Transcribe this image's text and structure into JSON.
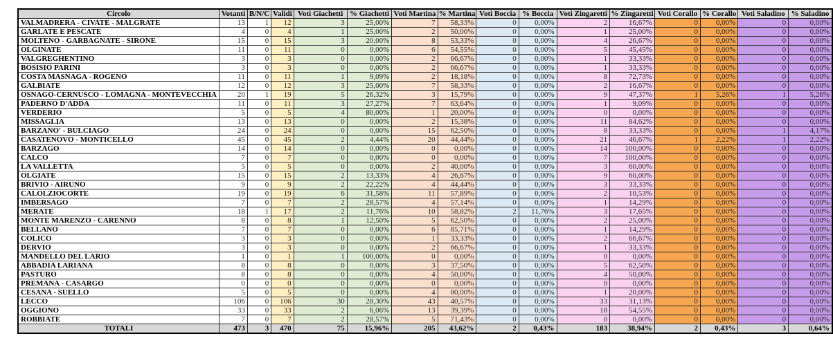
{
  "colors": {
    "header_bg": "#d8d8d8",
    "validi_bg": "#ffefc3",
    "giachetti_bg": "#dfebd2",
    "martina_bg": "#fbdfce",
    "boccia_bg": "#dce9f2",
    "zingaretti_bg": "#fad2f0",
    "corallo_bg": "#f6a550",
    "saladino_bg": "#c69cea",
    "totals_bg": "#d8d8d8"
  },
  "table": {
    "columns": [
      {
        "key": "circolo",
        "label": "Circolo"
      },
      {
        "key": "votanti",
        "label": "Votanti"
      },
      {
        "key": "bnc",
        "label": "B/N/C"
      },
      {
        "key": "validi",
        "label": "Validi"
      },
      {
        "key": "voti-giachetti",
        "label": "Voti Giachetti"
      },
      {
        "key": "pct-giachetti",
        "label": "% Giachetti"
      },
      {
        "key": "voti-martina",
        "label": "Voti Martina"
      },
      {
        "key": "pct-martina",
        "label": "% Martina"
      },
      {
        "key": "voti-boccia",
        "label": "Voti Boccia"
      },
      {
        "key": "pct-boccia",
        "label": "% Boccia"
      },
      {
        "key": "voti-zingaretti",
        "label": "Voti Zingaretti"
      },
      {
        "key": "pct-zingaretti",
        "label": "% Zingaretti"
      },
      {
        "key": "voti-corallo",
        "label": "Voti Corallo"
      },
      {
        "key": "pct-corallo",
        "label": "% Corallo"
      },
      {
        "key": "voti-saladino",
        "label": "Voti Saladino"
      },
      {
        "key": "pct-saladino",
        "label": "% Saladino"
      }
    ],
    "rows": [
      {
        "name": "VALMADRERA - CIVATE - MALGRATE",
        "values": [
          "13",
          "1",
          "12",
          "3",
          "25,00%",
          "7",
          "58,33%",
          "0",
          "0,00%",
          "2",
          "16,67%",
          "0",
          "0,00%",
          "0",
          "0,00%"
        ]
      },
      {
        "name": "GARLATE E PESCATE",
        "values": [
          "4",
          "0",
          "4",
          "1",
          "25,00%",
          "2",
          "50,00%",
          "0",
          "0,00%",
          "1",
          "25,00%",
          "0",
          "0,00%",
          "0",
          "0,00%"
        ]
      },
      {
        "name": "MOLTENO - GARBAGNATE - SIRONE",
        "values": [
          "15",
          "0",
          "15",
          "3",
          "20,00%",
          "8",
          "53,33%",
          "0",
          "0,00%",
          "4",
          "26,67%",
          "0",
          "0,00%",
          "0",
          "0,00%"
        ]
      },
      {
        "name": "OLGINATE",
        "values": [
          "11",
          "0",
          "11",
          "0",
          "0,00%",
          "6",
          "54,55%",
          "0",
          "0,00%",
          "5",
          "45,45%",
          "0",
          "0,00%",
          "0",
          "0,00%"
        ]
      },
      {
        "name": "VALGREGHENTINO",
        "values": [
          "3",
          "0",
          "3",
          "0",
          "0,00%",
          "2",
          "66,67%",
          "0",
          "0,00%",
          "1",
          "33,33%",
          "0",
          "0,00%",
          "0",
          "0,00%"
        ]
      },
      {
        "name": "BOSISIO PARINI",
        "values": [
          "3",
          "0",
          "3",
          "0",
          "0,00%",
          "2",
          "66,67%",
          "0",
          "0,00%",
          "1",
          "33,33%",
          "0",
          "0,00%",
          "0",
          "0,00%"
        ]
      },
      {
        "name": "COSTA MASNAGA - ROGENO",
        "values": [
          "11",
          "0",
          "11",
          "1",
          "9,09%",
          "2",
          "18,18%",
          "0",
          "0,00%",
          "8",
          "72,73%",
          "0",
          "0,00%",
          "0",
          "0,00%"
        ]
      },
      {
        "name": "GALBIATE",
        "values": [
          "12",
          "0",
          "12",
          "3",
          "25,00%",
          "7",
          "58,33%",
          "0",
          "0,00%",
          "2",
          "16,67%",
          "0",
          "0,00%",
          "0",
          "0,00%"
        ]
      },
      {
        "name": "OSNAGO-CERNUSCO - LOMAGNA - MONTEVECCHIA",
        "values": [
          "20",
          "1",
          "19",
          "5",
          "26,32%",
          "3",
          "15,79%",
          "0",
          "0,00%",
          "9",
          "47,37%",
          "1",
          "5,26%",
          "1",
          "5,26%"
        ]
      },
      {
        "name": "PADERNO D'ADDA",
        "values": [
          "11",
          "0",
          "11",
          "3",
          "27,27%",
          "7",
          "63,64%",
          "0",
          "0,00%",
          "1",
          "9,09%",
          "0",
          "0,00%",
          "0",
          "0,00%"
        ]
      },
      {
        "name": "VERDERIO",
        "values": [
          "5",
          "0",
          "5",
          "4",
          "80,00%",
          "1",
          "20,00%",
          "0",
          "0,00%",
          "0",
          "0,00%",
          "0",
          "0,00%",
          "0",
          "0,00%"
        ]
      },
      {
        "name": "MISSAGLIA",
        "values": [
          "13",
          "0",
          "13",
          "0",
          "0,00%",
          "2",
          "15,38%",
          "0",
          "0,00%",
          "11",
          "84,62%",
          "0",
          "0,00%",
          "0",
          "0,00%"
        ]
      },
      {
        "name": "BARZANO' - BULCIAGO",
        "values": [
          "24",
          "0",
          "24",
          "0",
          "0,00%",
          "15",
          "62,50%",
          "0",
          "0,00%",
          "8",
          "33,33%",
          "0",
          "0,00%",
          "1",
          "4,17%"
        ]
      },
      {
        "name": "CASATENOVO - MONTICELLO",
        "values": [
          "45",
          "0",
          "45",
          "2",
          "4,44%",
          "20",
          "44,44%",
          "0",
          "0,00%",
          "21",
          "46,67%",
          "1",
          "2,22%",
          "1",
          "2,22%"
        ]
      },
      {
        "name": "BARZAGO",
        "values": [
          "14",
          "0",
          "14",
          "0",
          "0,00%",
          "0",
          "0,00%",
          "0",
          "0,00%",
          "14",
          "100,00%",
          "0",
          "0,00%",
          "0",
          "0,00%"
        ]
      },
      {
        "name": "CALCO",
        "values": [
          "7",
          "0",
          "7",
          "0",
          "0,00%",
          "0",
          "0,00%",
          "0",
          "0,00%",
          "7",
          "100,00%",
          "0",
          "0,00%",
          "0",
          "0,00%"
        ]
      },
      {
        "name": "LA VALLETTA",
        "values": [
          "5",
          "0",
          "5",
          "0",
          "0,00%",
          "2",
          "40,00%",
          "0",
          "0,00%",
          "3",
          "60,00%",
          "0",
          "0,00%",
          "0",
          "0,00%"
        ]
      },
      {
        "name": "OLGIATE",
        "values": [
          "15",
          "0",
          "15",
          "2",
          "13,33%",
          "4",
          "26,67%",
          "0",
          "0,00%",
          "9",
          "60,00%",
          "0",
          "0,00%",
          "0",
          "0,00%"
        ]
      },
      {
        "name": "BRIVIO - AIRUNO",
        "values": [
          "9",
          "0",
          "9",
          "2",
          "22,22%",
          "4",
          "44,44%",
          "0",
          "0,00%",
          "3",
          "33,33%",
          "0",
          "0,00%",
          "0",
          "0,00%"
        ]
      },
      {
        "name": "CALOLZIOCORTE",
        "values": [
          "19",
          "0",
          "19",
          "6",
          "31,58%",
          "11",
          "57,89%",
          "0",
          "0,00%",
          "2",
          "10,53%",
          "0",
          "0,00%",
          "0",
          "0,00%"
        ]
      },
      {
        "name": "IMBERSAGO",
        "values": [
          "7",
          "0",
          "7",
          "2",
          "28,57%",
          "4",
          "57,14%",
          "0",
          "0,00%",
          "1",
          "14,29%",
          "0",
          "0,00%",
          "0",
          "0,00%"
        ]
      },
      {
        "name": "MERATE",
        "values": [
          "18",
          "1",
          "17",
          "2",
          "11,76%",
          "10",
          "58,82%",
          "2",
          "11,76%",
          "3",
          "17,65%",
          "0",
          "0,00%",
          "0",
          "0,00%"
        ]
      },
      {
        "name": "MONTE MARENZO - CARENNO",
        "values": [
          "8",
          "0",
          "8",
          "1",
          "12,50%",
          "5",
          "62,50%",
          "0",
          "0,00%",
          "2",
          "25,00%",
          "0",
          "0,00%",
          "0",
          "0,00%"
        ]
      },
      {
        "name": "BELLANO",
        "values": [
          "7",
          "0",
          "7",
          "0",
          "0,00%",
          "6",
          "85,71%",
          "0",
          "0,00%",
          "1",
          "14,29%",
          "0",
          "0,00%",
          "0",
          "0,00%"
        ]
      },
      {
        "name": "COLICO",
        "values": [
          "3",
          "0",
          "3",
          "0",
          "0,00%",
          "1",
          "33,33%",
          "0",
          "0,00%",
          "2",
          "66,67%",
          "0",
          "0,00%",
          "0",
          "0,00%"
        ]
      },
      {
        "name": "DERVIO",
        "values": [
          "3",
          "0",
          "3",
          "0",
          "0,00%",
          "2",
          "66,67%",
          "0",
          "0,00%",
          "1",
          "33,33%",
          "0",
          "0,00%",
          "0",
          "0,00%"
        ]
      },
      {
        "name": "MANDELLO DEL LARIO",
        "values": [
          "1",
          "0",
          "1",
          "1",
          "100,00%",
          "0",
          "0,00%",
          "0",
          "0,00%",
          "0",
          "0,00%",
          "0",
          "0,00%",
          "0",
          "0,00%"
        ]
      },
      {
        "name": "ABBADIA LARIANA",
        "values": [
          "8",
          "0",
          "8",
          "0",
          "0,00%",
          "3",
          "37,50%",
          "0",
          "0,00%",
          "5",
          "62,50%",
          "0",
          "0,00%",
          "0",
          "0,00%"
        ]
      },
      {
        "name": "PASTURO",
        "values": [
          "8",
          "0",
          "8",
          "0",
          "0,00%",
          "4",
          "50,00%",
          "0",
          "0,00%",
          "4",
          "50,00%",
          "0",
          "0,00%",
          "0",
          "0,00%"
        ]
      },
      {
        "name": "PREMANA - CASARGO",
        "values": [
          "0",
          "0",
          "0",
          "0",
          "0,00%",
          "0",
          "0,00%",
          "0",
          "0,00%",
          "0",
          "0,00%",
          "0",
          "0,00%",
          "0",
          "0,00%"
        ]
      },
      {
        "name": "CESANA - SUELLO",
        "values": [
          "5",
          "0",
          "5",
          "0",
          "0,00%",
          "4",
          "80,00%",
          "0",
          "0,00%",
          "1",
          "20,00%",
          "0",
          "0,00%",
          "0",
          "0,00%"
        ]
      },
      {
        "name": "LECCO",
        "values": [
          "106",
          "0",
          "106",
          "30",
          "28,30%",
          "43",
          "40,57%",
          "0",
          "0,00%",
          "33",
          "31,13%",
          "0",
          "0,00%",
          "0",
          "0,00%"
        ]
      },
      {
        "name": "OGGIONO",
        "values": [
          "33",
          "0",
          "33",
          "2",
          "6,06%",
          "13",
          "39,39%",
          "0",
          "0,00%",
          "18",
          "54,55%",
          "0",
          "0,00%",
          "0",
          "0,00%"
        ]
      },
      {
        "name": "ROBBIATE",
        "values": [
          "7",
          "0",
          "7",
          "2",
          "28,57%",
          "5",
          "71,43%",
          "0",
          "0,00%",
          "0",
          "0,00%",
          "0",
          "0,00%",
          "0",
          "0,00%"
        ]
      }
    ],
    "totals": {
      "label": "TOTALI",
      "values": [
        "473",
        "3",
        "470",
        "75",
        "15,96%",
        "205",
        "43,62%",
        "2",
        "0,43%",
        "183",
        "38,94%",
        "2",
        "0,43%",
        "3",
        "0,64%"
      ]
    }
  }
}
